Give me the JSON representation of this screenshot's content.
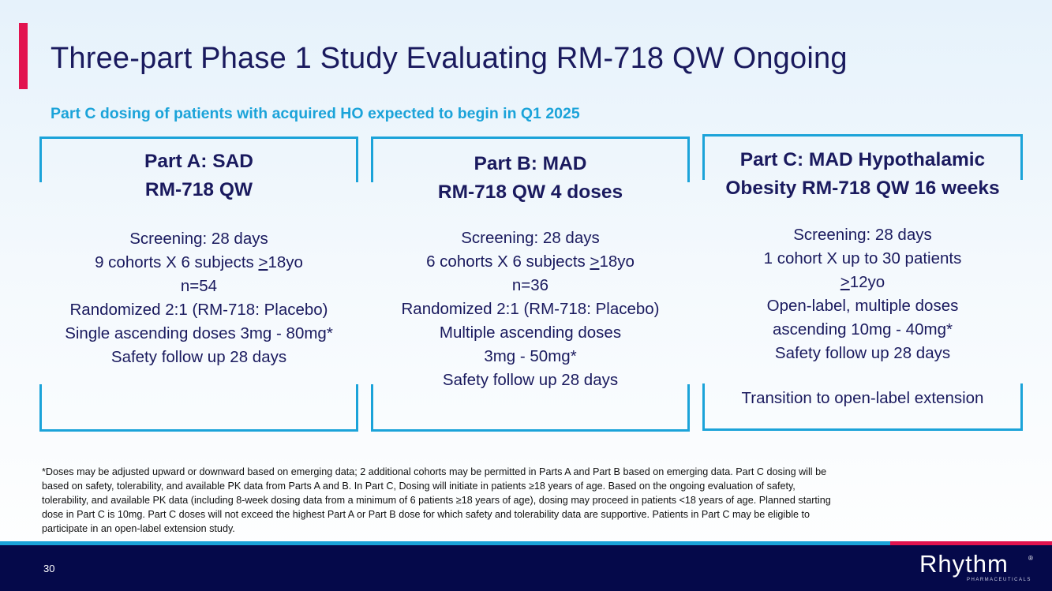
{
  "title": "Three-part Phase 1 Study Evaluating RM-718 QW Ongoing",
  "subtitle": "Part C dosing of patients with acquired HO expected to begin in Q1 2025",
  "panels": [
    {
      "title_lines": [
        "Part A: SAD",
        "RM-718 QW"
      ],
      "screening": "Screening: 28 days",
      "cohorts_prefix": "9 cohorts X 6 subjects ",
      "cohorts_ge": ">",
      "cohorts_suffix": "18yo",
      "n": "n=54",
      "randomized": "Randomized 2:1 (RM-718: Placebo)",
      "doses": "Single ascending doses 3mg - 80mg*",
      "safety": "Safety follow up 28 days"
    },
    {
      "title_lines": [
        "Part B: MAD",
        "RM-718 QW 4 doses"
      ],
      "screening": "Screening: 28 days",
      "cohorts_prefix": "6 cohorts X 6 subjects ",
      "cohorts_ge": ">",
      "cohorts_suffix": "18yo",
      "n": "n=36",
      "randomized": "Randomized 2:1 (RM-718: Placebo)",
      "doses_line1": "Multiple ascending doses",
      "doses_line2": "3mg -  50mg*",
      "safety": "Safety follow up 28 days"
    },
    {
      "title_lines": [
        "Part C: MAD Hypothalamic",
        "Obesity RM-718 QW 16 weeks"
      ],
      "screening": "Screening: 28 days",
      "cohorts": "1 cohort X up to 30 patients",
      "age_ge": ">",
      "age_suffix": "12yo",
      "open_label": "Open-label, multiple doses",
      "doses": "ascending 10mg -  40mg*",
      "safety": "Safety follow up 28 days",
      "extension": "Transition to open-label extension"
    }
  ],
  "footnote_lines": [
    "*Doses may be adjusted upward or downward based on emerging data; 2 additional cohorts may be permitted in Parts A and Part B based on emerging data. Part C dosing will be",
    "based on safety, tolerability, and available PK data from Parts A and B. In Part C, Dosing will initiate in patients ≥18 years of age. Based on the ongoing evaluation of safety,",
    "tolerability, and available PK data (including 8-week dosing data from a minimum of 6 patients ≥18 years of age), dosing may proceed in patients <18 years of age. Planned starting",
    "dose in Part C is 10mg. Part C doses will not exceed the highest Part A or Part B dose for which safety and tolerability data are supportive. Patients in Part C may be eligible to",
    "participate in an open-label extension study."
  ],
  "footer": {
    "page_number": "30",
    "logo_text": "Rhythm",
    "logo_reg": "®",
    "logo_sub": "PHARMACEUTICALS"
  },
  "colors": {
    "accent": "#e2134f",
    "brand_blue": "#1ba3d9",
    "navy": "#05094a",
    "text": "#1a1a5e"
  }
}
